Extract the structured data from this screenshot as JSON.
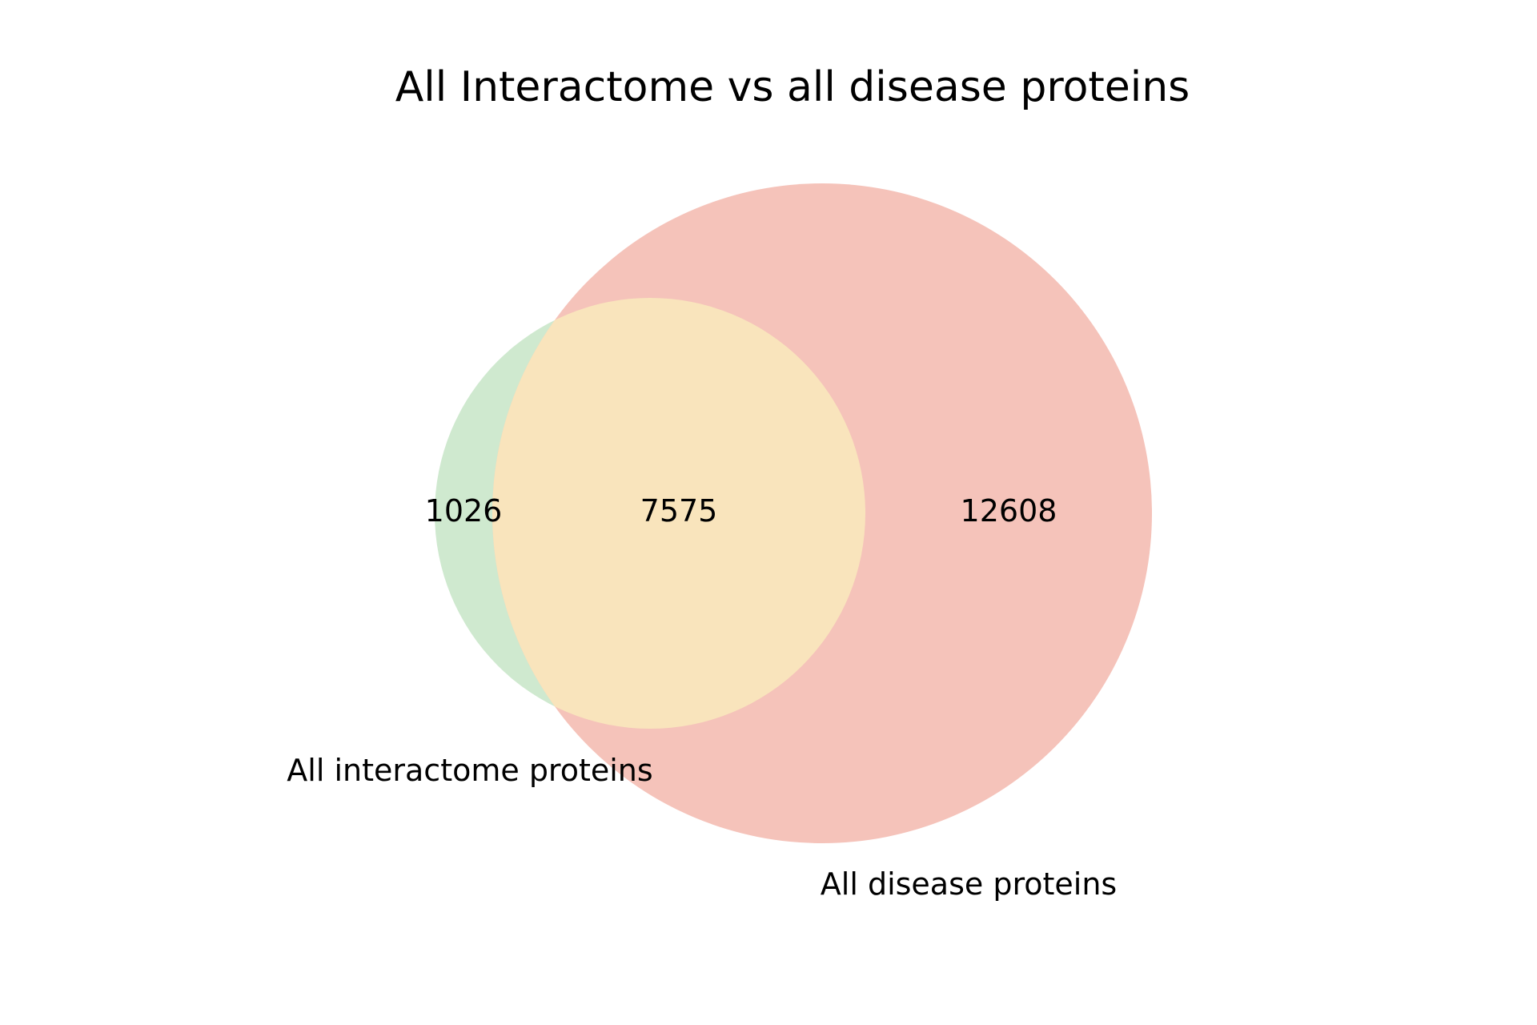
{
  "chart_data": {
    "type": "venn",
    "title": "All Interactome vs all disease proteins",
    "sets": [
      {
        "name": "All interactome proteins",
        "color": "#cfe9cf"
      },
      {
        "name": "All disease proteins",
        "color": "#f5c3ba"
      }
    ],
    "regions": [
      {
        "sets": [
          "All interactome proteins"
        ],
        "value": 1026
      },
      {
        "sets": [
          "All interactome proteins",
          "All disease proteins"
        ],
        "value": 7575
      },
      {
        "sets": [
          "All disease proteins"
        ],
        "value": 12608
      }
    ],
    "overlap_color": "#f9e4bc"
  }
}
